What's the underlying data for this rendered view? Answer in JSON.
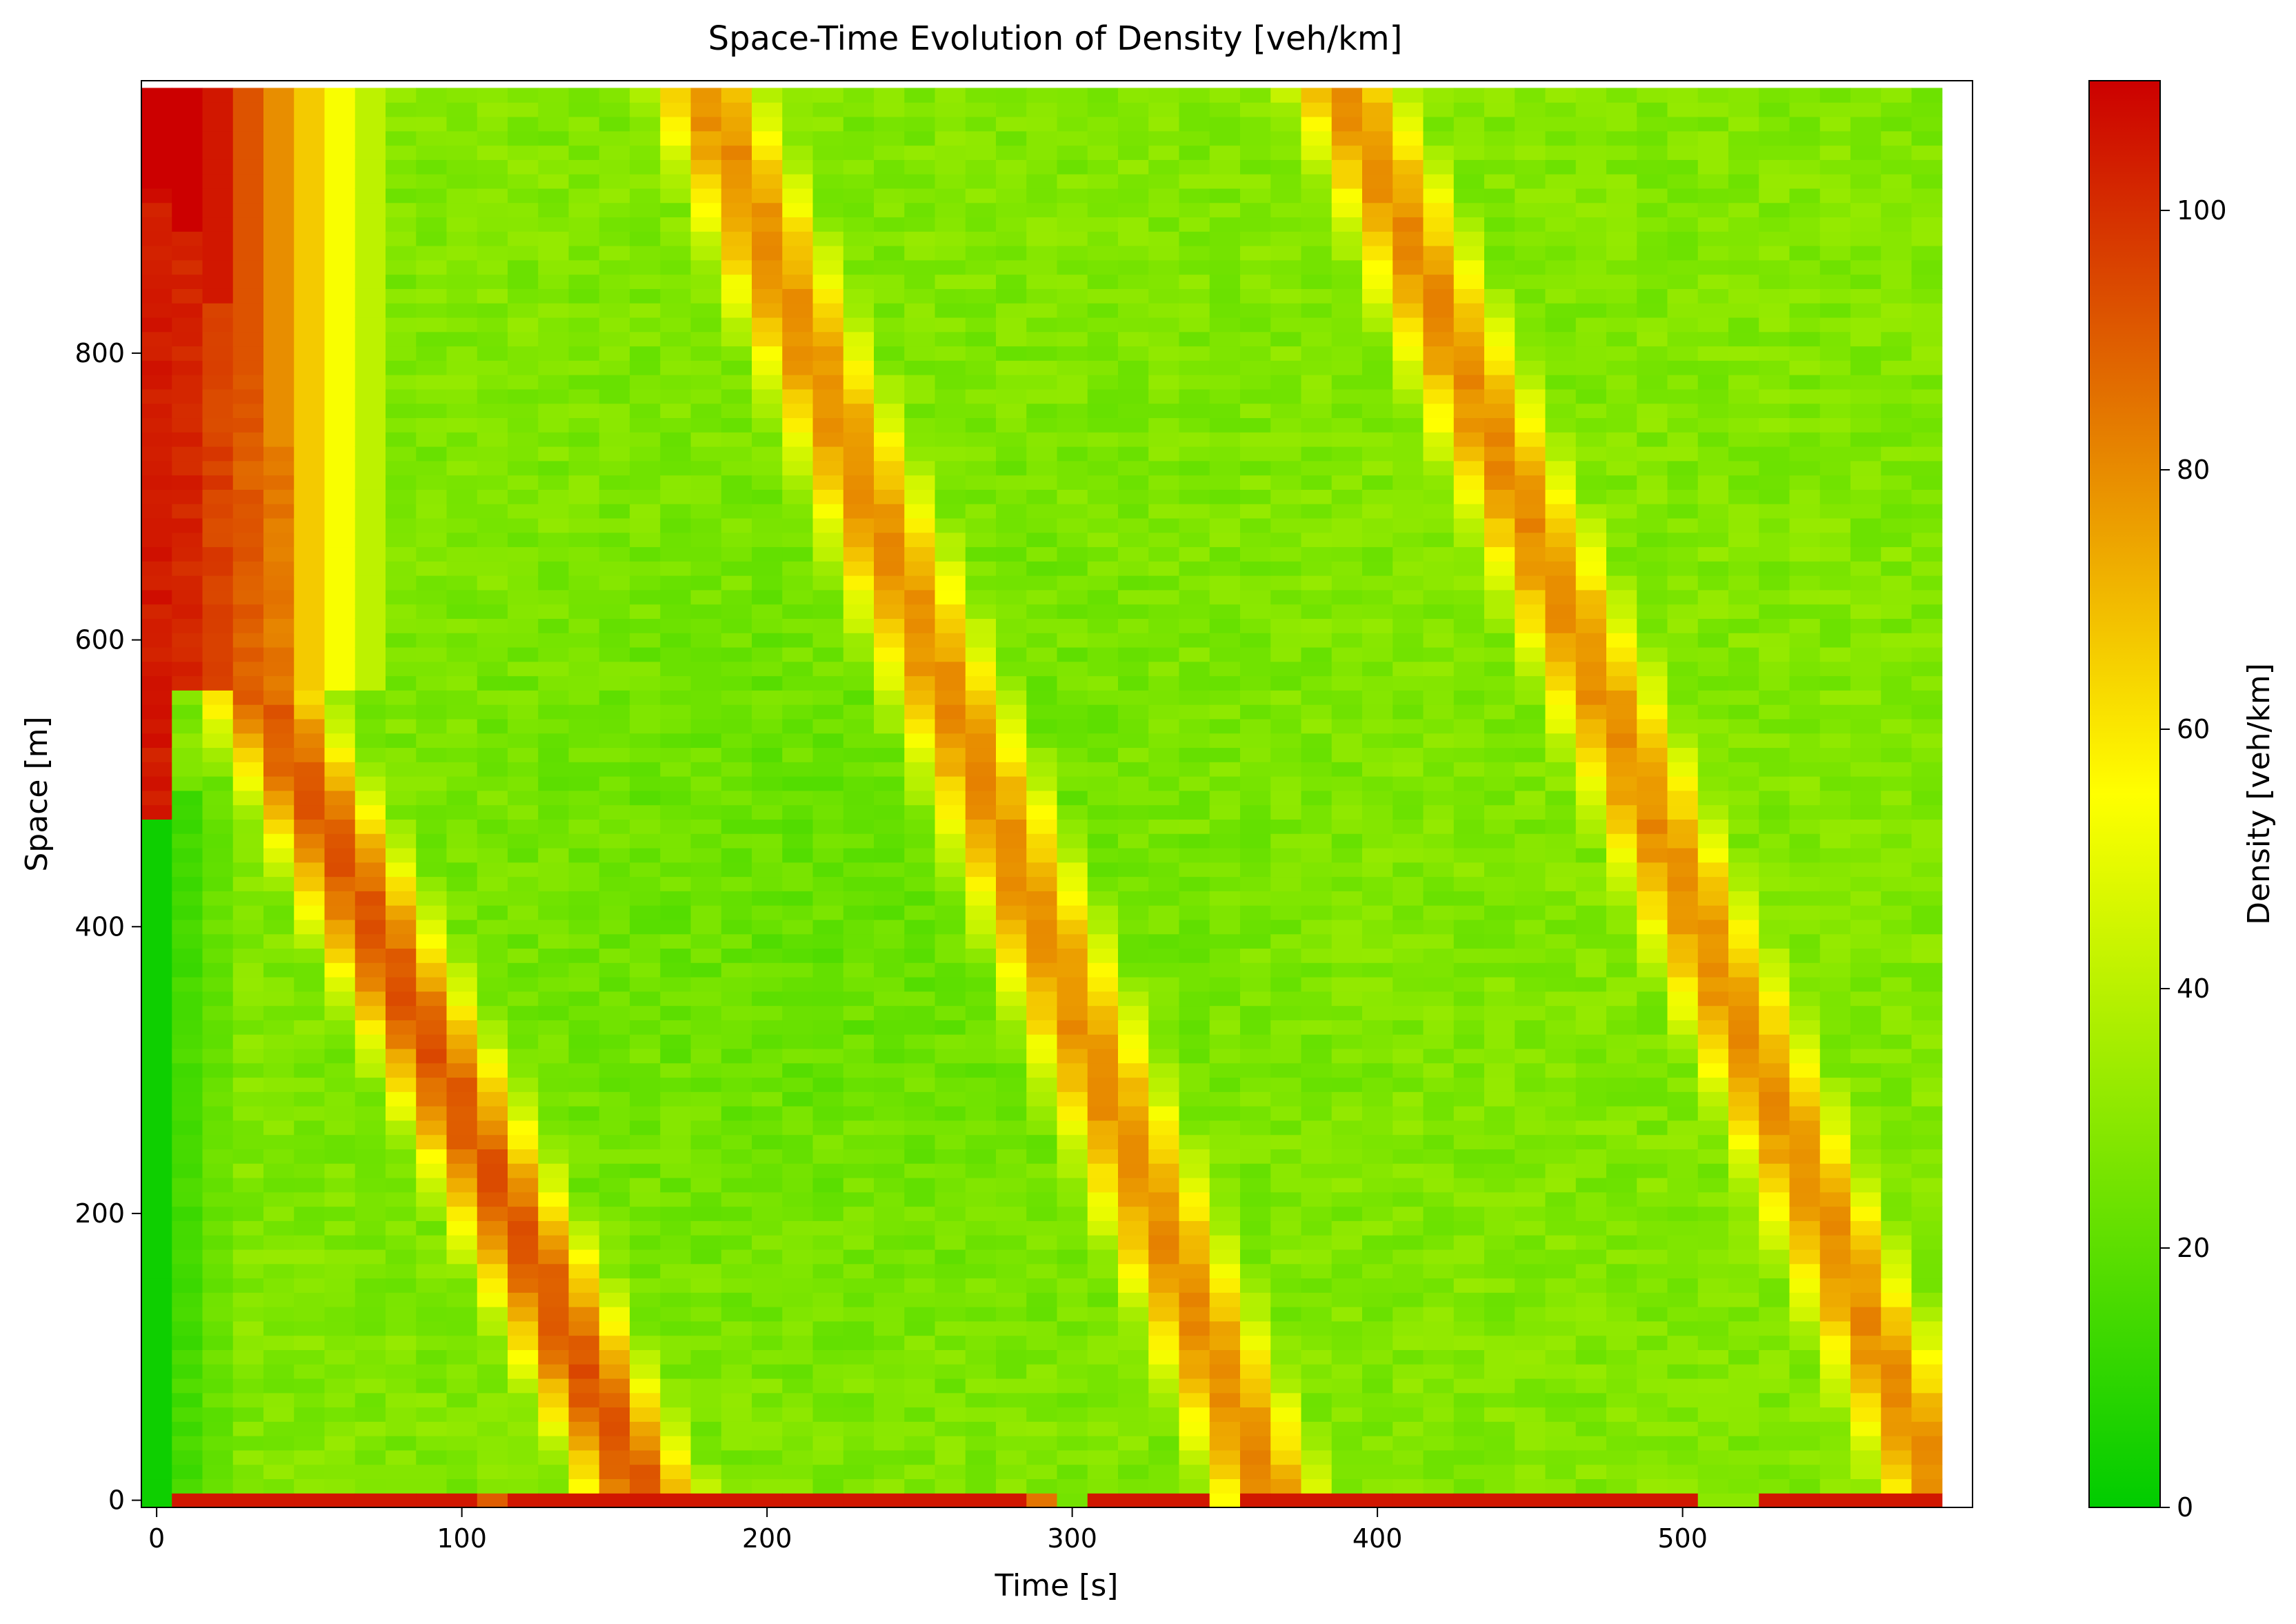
{
  "chart_data": {
    "type": "heatmap",
    "title": "Space-Time Evolution of Density [veh/km]",
    "xlabel": "Time [s]",
    "ylabel": "Space [m]",
    "xlim": [
      -5,
      595
    ],
    "ylim": [
      -5,
      990
    ],
    "x_ticks": [
      0,
      100,
      200,
      300,
      400,
      500
    ],
    "x_tick_labels": [
      "0",
      "100",
      "200",
      "300",
      "400",
      "500"
    ],
    "y_ticks": [
      0,
      200,
      400,
      600,
      800
    ],
    "y_tick_labels": [
      "0",
      "200",
      "400",
      "600",
      "800"
    ],
    "grid": false,
    "legend": "none",
    "colorbar": {
      "label": "Density [veh/km]",
      "range": [
        0,
        110
      ],
      "ticks": [
        0,
        20,
        40,
        60,
        80,
        100
      ],
      "tick_labels": [
        "0",
        "20",
        "40",
        "60",
        "80",
        "100"
      ],
      "colors": [
        "#00cc00",
        "#ffff00",
        "#cc0000"
      ]
    },
    "cell_size": {
      "time_s": 10,
      "space_m": 10
    },
    "initial_state": {
      "jam_start_m": 480,
      "jam_end_m": 910,
      "jam_density": 105,
      "free_density": 3
    },
    "congestion_bands": [
      {
        "name": "",
        "x_at_top": 35,
        "top_m": 560,
        "x_at_bottom": 160,
        "bottom_m": 0,
        "peak_density": 92
      },
      {
        "name": "",
        "x_at_top": 180,
        "top_m": 980,
        "x_at_bottom": 365,
        "bottom_m": 0,
        "peak_density": 80
      },
      {
        "name": "",
        "x_at_top": 390,
        "top_m": 980,
        "x_at_bottom": 585,
        "bottom_m": 0,
        "peak_density": 80
      }
    ],
    "background_density": 28,
    "bottom_row_density": 105,
    "bottom_row_exceptions": [
      {
        "t0": 105,
        "t1": 115,
        "density": 90
      },
      {
        "t0": 285,
        "t1": 295,
        "density": 85
      },
      {
        "t0": 295,
        "t1": 305,
        "density": 25
      },
      {
        "t0": 345,
        "t1": 355,
        "density": 55
      },
      {
        "t0": 505,
        "t1": 525,
        "density": 30
      }
    ]
  }
}
